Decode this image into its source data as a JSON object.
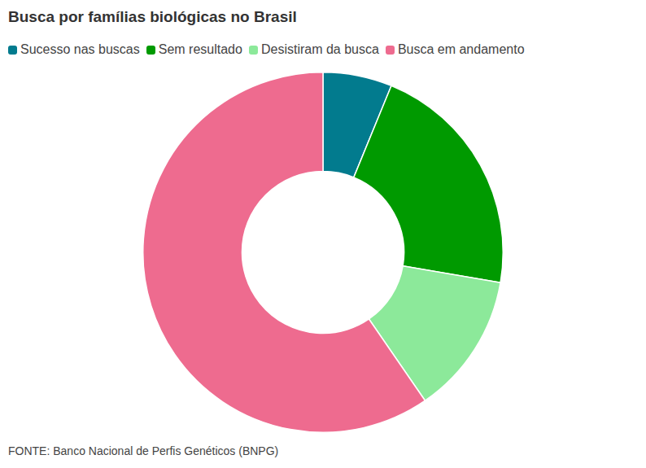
{
  "chart_data": {
    "type": "doughnut",
    "title": "Busca por famílias biológicas no Brasil",
    "categories": [
      "Sucesso nas buscas",
      "Sem resultado",
      "Desistiram da busca",
      "Busca em andamento"
    ],
    "values": [
      6.2,
      21.5,
      12.7,
      59.6
    ],
    "colors": [
      "#027b8e",
      "#009a00",
      "#8ce99a",
      "#ee6b8f"
    ],
    "legend": "top-left",
    "source": "FONTE: Banco Nacional de Perfis Genéticos (BNPG)"
  }
}
